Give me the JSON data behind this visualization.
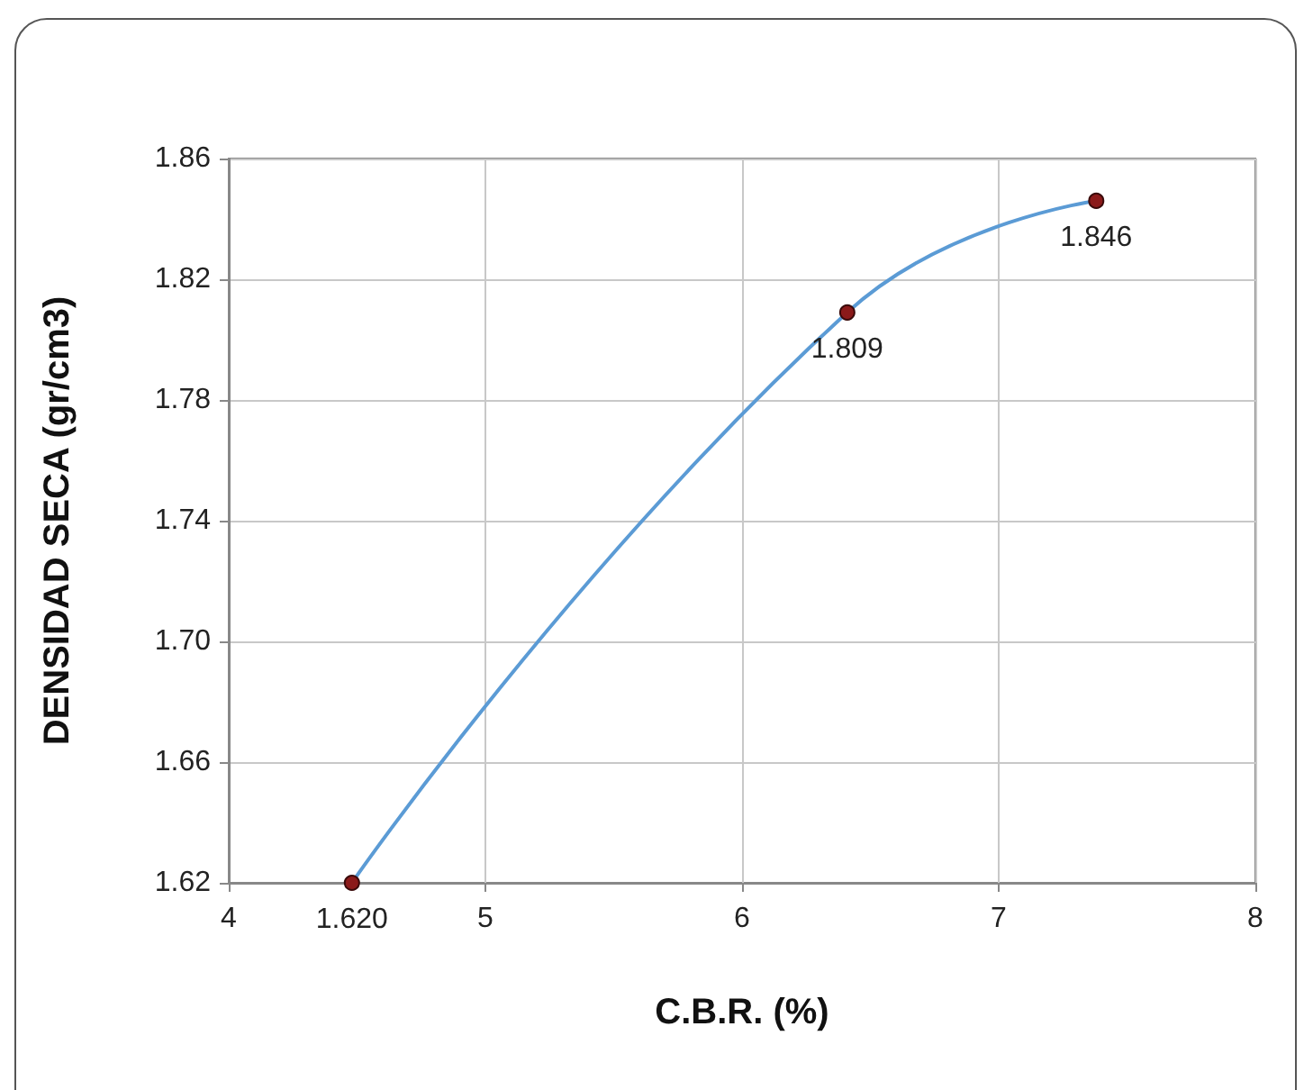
{
  "chart_data": {
    "type": "line",
    "xlabel": "C.B.R. (%)",
    "ylabel": "DENSIDAD SECA (gr/cm3)",
    "x": [
      4.48,
      6.41,
      7.38
    ],
    "series": [
      {
        "color": "#5b9bd5",
        "values": [
          1.62,
          1.809,
          1.846
        ],
        "value_labels": [
          "1.620",
          "1.809",
          "1.846"
        ]
      }
    ],
    "xlim": [
      4,
      8
    ],
    "xticks": [
      4,
      5,
      6,
      7,
      8
    ],
    "ylim": [
      1.62,
      1.86
    ],
    "yticks": [
      1.62,
      1.66,
      {
        "value": 1.7,
        "label": "1.70"
      },
      1.74,
      1.78,
      1.82,
      1.86
    ],
    "grid": true,
    "marker": "circle",
    "line_style": "solid"
  }
}
